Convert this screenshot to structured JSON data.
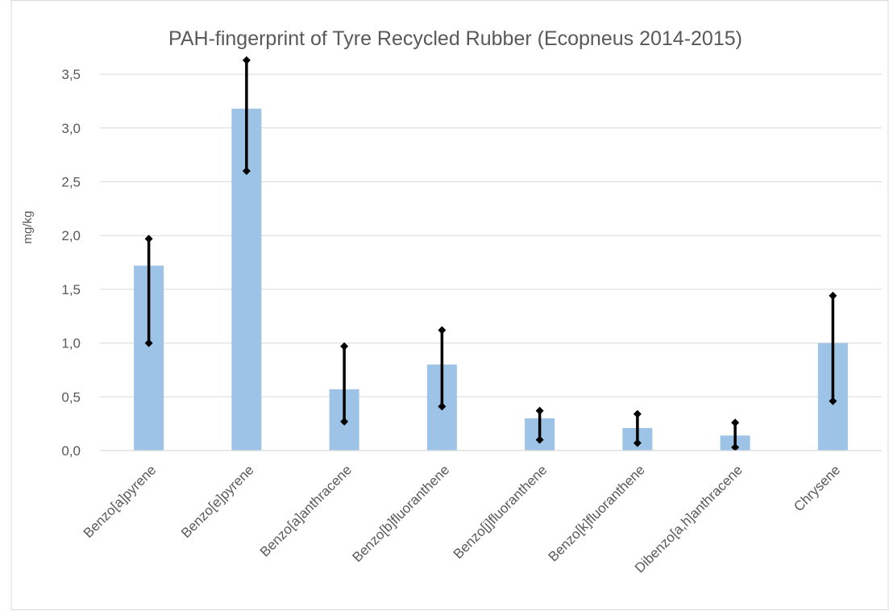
{
  "chart_data": {
    "type": "bar",
    "title": "PAH-fingerprint  of Tyre Recycled Rubber (Ecopneus 2014-2015)",
    "xlabel": "",
    "ylabel": "mg/kg",
    "ylim": [
      0,
      3.5
    ],
    "yticks": [
      "0,0",
      "0,5",
      "1,0",
      "1,5",
      "2,0",
      "2,5",
      "3,0",
      "3,5"
    ],
    "grid": true,
    "legend": "none",
    "bar_color": "#9DC3E6",
    "error_color": "#000000",
    "categories": [
      "Benzo[a]pyrene",
      "Benzo[e]pyrene",
      "Benzo[a]anthracene",
      "Benzo[b]fluoranthene",
      "Benzo[j]fluoranthene",
      "Benzo[k]fluoranthene",
      "Dibenzo[a,h]anthracene",
      "Chrysene"
    ],
    "values": [
      1.72,
      3.18,
      0.57,
      0.8,
      0.3,
      0.21,
      0.14,
      1.0
    ],
    "error_low": [
      1.0,
      2.6,
      0.27,
      0.41,
      0.1,
      0.07,
      0.03,
      0.46
    ],
    "error_high": [
      1.97,
      3.63,
      0.97,
      1.12,
      0.37,
      0.34,
      0.26,
      1.44
    ]
  }
}
